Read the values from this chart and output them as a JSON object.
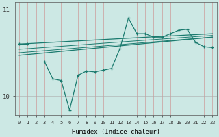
{
  "xlabel": "Humidex (Indice chaleur)",
  "bg_color": "#cce8e4",
  "line_color": "#1a7a6e",
  "xlim": [
    -0.5,
    23.5
  ],
  "ylim": [
    9.78,
    11.08
  ],
  "yticks": [
    10,
    11
  ],
  "xticks": [
    0,
    1,
    2,
    3,
    4,
    5,
    6,
    7,
    8,
    9,
    10,
    11,
    12,
    13,
    14,
    15,
    16,
    17,
    18,
    19,
    20,
    21,
    22,
    23
  ],
  "series_main": {
    "x": [
      0,
      1,
      2,
      3,
      4,
      5,
      6,
      7,
      8,
      9,
      10,
      11,
      12,
      13,
      14,
      15,
      16,
      17,
      18,
      19,
      20,
      21,
      22,
      23
    ],
    "y": [
      10.6,
      10.6,
      null,
      10.4,
      10.2,
      10.18,
      9.84,
      10.24,
      10.29,
      10.28,
      10.3,
      10.32,
      10.55,
      10.9,
      10.72,
      10.72,
      10.68,
      10.68,
      10.72,
      10.76,
      10.77,
      10.62,
      10.57,
      10.56
    ]
  },
  "trend_upper": {
    "x": [
      0,
      23
    ],
    "y": [
      10.6,
      10.72
    ]
  },
  "trend_lower": {
    "x": [
      0,
      23
    ],
    "y": [
      10.47,
      10.68
    ]
  },
  "band_lines": [
    {
      "x": [
        0,
        23
      ],
      "y": [
        10.54,
        10.7
      ]
    },
    {
      "x": [
        0,
        23
      ],
      "y": [
        10.5,
        10.68
      ]
    }
  ]
}
